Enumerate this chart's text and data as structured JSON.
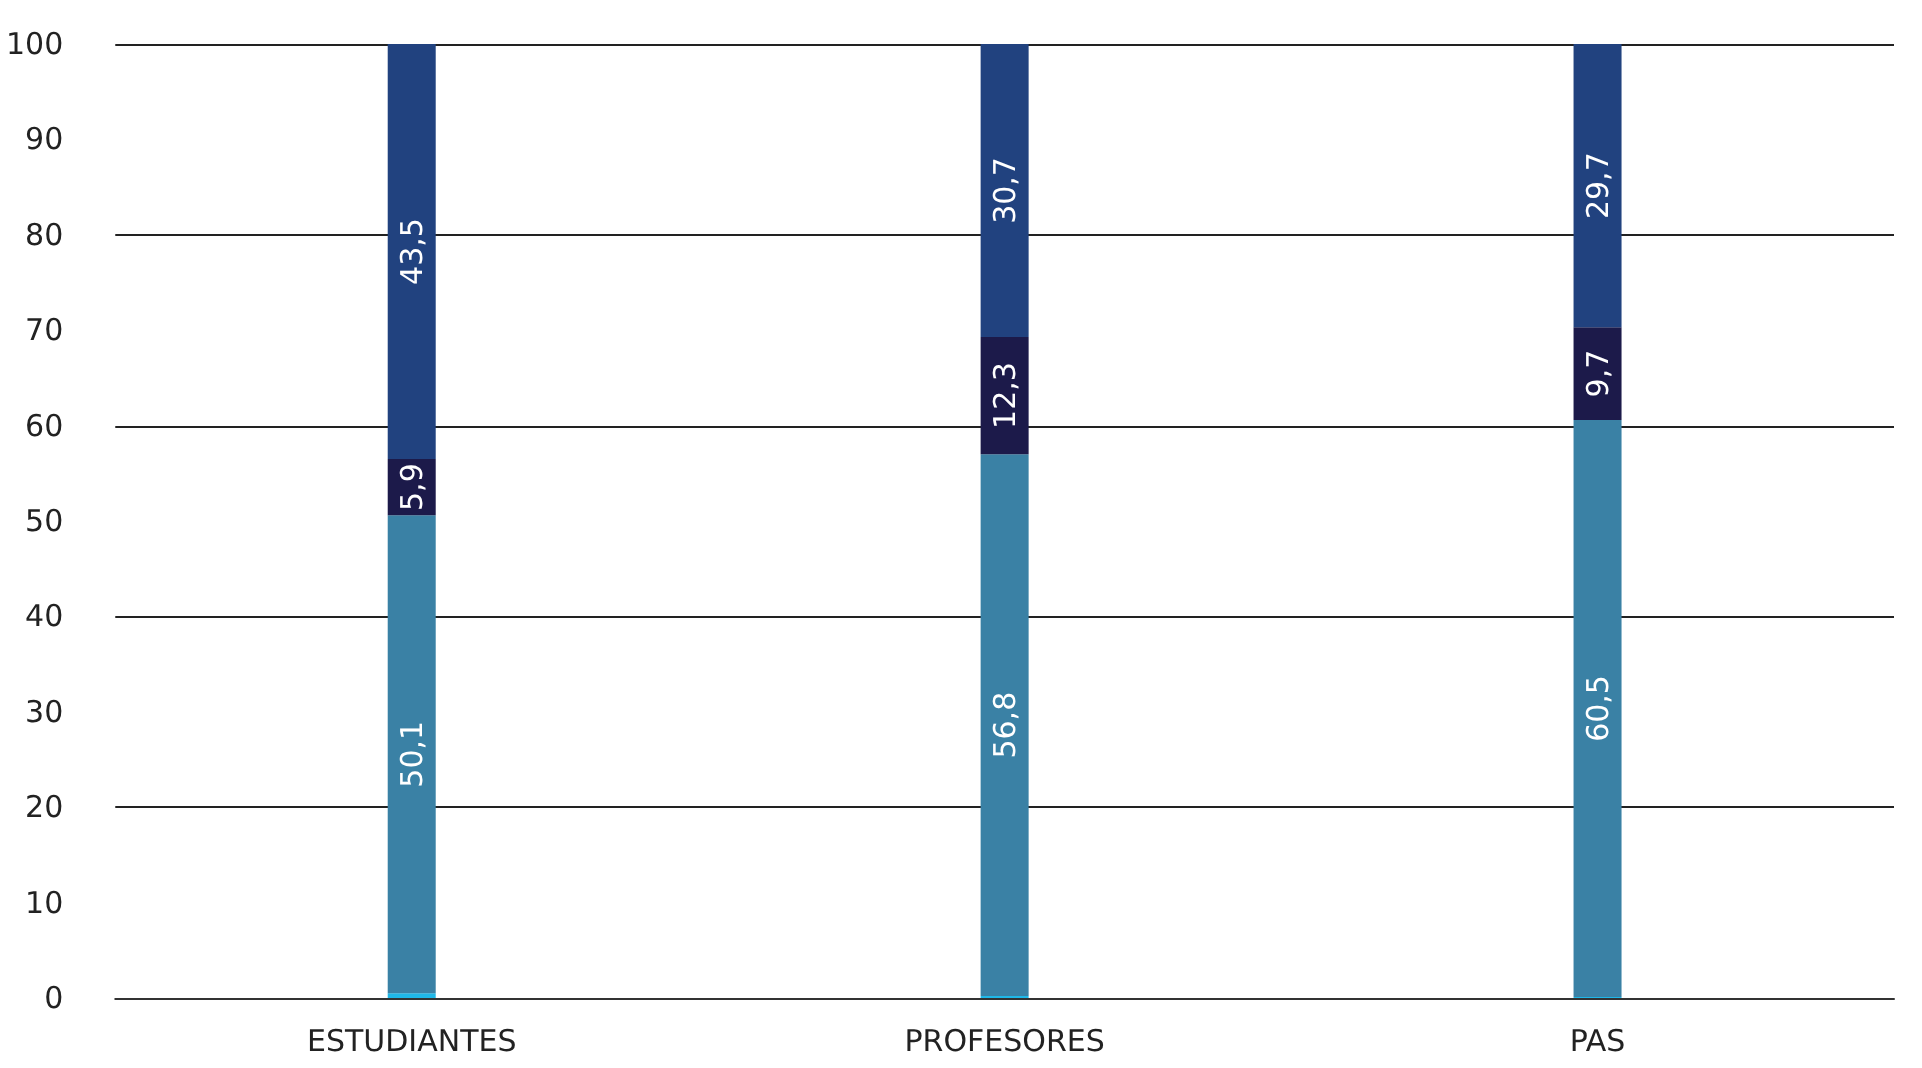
{
  "chart_data": {
    "type": "bar",
    "stacked": true,
    "categories": [
      "ESTUDIANTES",
      "PROFESORES",
      "PAS"
    ],
    "series": [
      {
        "color": "#1fb8e8",
        "values": [
          0.5,
          0.2,
          0.1
        ],
        "value_labels": [
          null,
          null,
          null
        ]
      },
      {
        "color": "#3a81a5",
        "values": [
          50.1,
          56.8,
          60.5
        ],
        "value_labels": [
          "50,1",
          "56,8",
          "60,5"
        ]
      },
      {
        "color": "#1c1a4a",
        "values": [
          5.9,
          12.3,
          9.7
        ],
        "value_labels": [
          "5,9",
          "12,3",
          "9,7"
        ]
      },
      {
        "color": "#21427f",
        "values": [
          43.5,
          30.7,
          29.7
        ],
        "value_labels": [
          "43,5",
          "30,7",
          "29,7"
        ]
      }
    ],
    "ylim": [
      0,
      100
    ],
    "yticks": [
      0,
      10,
      20,
      30,
      40,
      50,
      60,
      70,
      80,
      90,
      100
    ],
    "grid": "y"
  }
}
